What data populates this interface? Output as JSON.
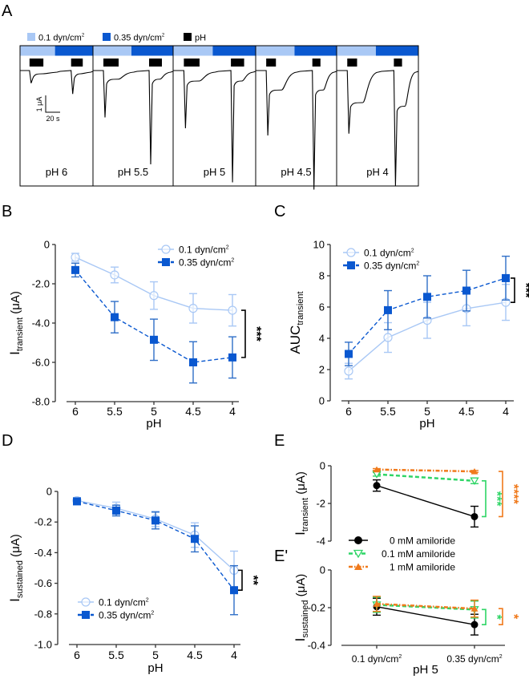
{
  "colors": {
    "light_blue": "#a9c8f5",
    "dark_blue": "#0a58d0",
    "light_blue_line": "#a9c8f5",
    "black": "#000000",
    "green": "#2fd566",
    "orange": "#f07a1c"
  },
  "panelA": {
    "label": "A",
    "legend": [
      {
        "name": "0.1 dyn/cm²",
        "text": "0.1 dyn/cm",
        "sup": "2",
        "color": "#a9c8f5"
      },
      {
        "name": "0.35 dyn/cm²",
        "text": "0.35 dyn/cm",
        "sup": "2",
        "color": "#0a58d0"
      },
      {
        "name": "pH",
        "text": "pH",
        "sup": "",
        "color": "#000000"
      }
    ],
    "scale_bar": {
      "current": "1 μA",
      "time": "20 s"
    },
    "traces": [
      {
        "label": "pH 6",
        "peak1": 0.35,
        "peak2": 0.65,
        "plateau1": 0.0,
        "plateau2": 0.0,
        "pulse1": "long",
        "pulse2": "long"
      },
      {
        "label": "pH 5.5",
        "peak1": 1.3,
        "peak2": 2.6,
        "plateau1": 0.15,
        "plateau2": 0.15,
        "pulse1": "long",
        "pulse2": "long"
      },
      {
        "label": "pH 5",
        "peak1": 1.6,
        "peak2": 3.1,
        "plateau1": 0.2,
        "plateau2": 0.2,
        "pulse1": "long",
        "pulse2": "long"
      },
      {
        "label": "pH 4.5",
        "peak1": 1.8,
        "peak2": 3.3,
        "plateau1": 0.45,
        "plateau2": 0.45,
        "pulse1": "short",
        "pulse2": "short"
      },
      {
        "label": "pH 4",
        "peak1": 1.75,
        "peak2": 3.2,
        "plateau1": 0.8,
        "plateau2": 0.9,
        "pulse1": "short",
        "pulse2": "short"
      }
    ]
  },
  "chart_data": [
    {
      "id": "B",
      "label": "B",
      "type": "line",
      "title": "",
      "xlabel": "pH",
      "ylabel": "I",
      "ylabel_sub": "transient",
      "ylabel_unit": "(μA)",
      "categories": [
        "6",
        "5.5",
        "5",
        "4.5",
        "4"
      ],
      "ylim": [
        -8,
        0
      ],
      "yticks": [
        0,
        -2,
        -4,
        -6,
        -8
      ],
      "ytick_labels": [
        "0",
        "-2.0",
        "-4.0",
        "-6.0",
        "-8.0"
      ],
      "legend_position": "top-right",
      "series": [
        {
          "name": "0.1 dyn/cm²",
          "marker": "open-circle",
          "line": "solid",
          "color": "#a9c8f5",
          "values": [
            -0.65,
            -1.55,
            -2.6,
            -3.25,
            -3.35
          ],
          "err": [
            0.2,
            0.4,
            0.7,
            0.75,
            0.8
          ]
        },
        {
          "name": "0.35 dyn/cm²",
          "marker": "filled-square",
          "line": "dashed",
          "color": "#0a58d0",
          "values": [
            -1.3,
            -3.7,
            -4.85,
            -6.0,
            -5.75
          ],
          "err": [
            0.35,
            0.8,
            1.05,
            1.05,
            1.05
          ]
        }
      ],
      "significance": [
        {
          "text": "***",
          "color": "#000000",
          "from": -3.35,
          "to": -5.75
        }
      ]
    },
    {
      "id": "C",
      "label": "C",
      "type": "line",
      "title": "",
      "xlabel": "pH",
      "ylabel": "AUC",
      "ylabel_sub": "transient",
      "ylabel_unit": "",
      "categories": [
        "6",
        "5.5",
        "5",
        "4.5",
        "4"
      ],
      "ylim": [
        0,
        10
      ],
      "yticks": [
        0,
        2,
        4,
        6,
        8,
        10
      ],
      "ytick_labels": [
        "0",
        "2",
        "4",
        "6",
        "8",
        "10"
      ],
      "legend_position": "top-left",
      "series": [
        {
          "name": "0.1 dyn/cm²",
          "marker": "open-circle",
          "line": "solid",
          "color": "#a9c8f5",
          "values": [
            1.9,
            4.05,
            5.15,
            5.9,
            6.3
          ],
          "err": [
            0.5,
            0.95,
            1.15,
            1.1,
            1.15
          ]
        },
        {
          "name": "0.35 dyn/cm²",
          "marker": "filled-square",
          "line": "dashed",
          "color": "#0a58d0",
          "values": [
            3.0,
            5.8,
            6.65,
            7.05,
            7.85
          ],
          "err": [
            0.75,
            1.25,
            1.35,
            1.3,
            1.4
          ]
        }
      ],
      "significance": [
        {
          "text": "***",
          "color": "#000000",
          "from": 7.85,
          "to": 6.3
        }
      ]
    },
    {
      "id": "D",
      "label": "D",
      "type": "line",
      "title": "",
      "xlabel": "pH",
      "ylabel": "I",
      "ylabel_sub": "sustained",
      "ylabel_unit": "(μA)",
      "categories": [
        "6",
        "5.5",
        "5",
        "4.5",
        "4"
      ],
      "ylim": [
        -1,
        0
      ],
      "yticks": [
        0,
        -0.2,
        -0.4,
        -0.6,
        -0.8,
        -1.0
      ],
      "ytick_labels": [
        "0",
        "-0.2",
        "-0.4",
        "-0.6",
        "-0.8",
        "-1.0"
      ],
      "legend_position": "bottom-left",
      "series": [
        {
          "name": "0.1 dyn/cm²",
          "marker": "open-circle",
          "line": "solid",
          "color": "#a9c8f5",
          "values": [
            -0.06,
            -0.11,
            -0.18,
            -0.285,
            -0.515
          ],
          "err": [
            0.02,
            0.04,
            0.05,
            0.08,
            0.125
          ]
        },
        {
          "name": "0.35 dyn/cm²",
          "marker": "filled-square",
          "line": "dashed",
          "color": "#0a58d0",
          "values": [
            -0.065,
            -0.125,
            -0.19,
            -0.31,
            -0.645
          ],
          "err": [
            0.02,
            0.035,
            0.055,
            0.085,
            0.16
          ]
        }
      ],
      "significance": [
        {
          "text": "**",
          "color": "#000000",
          "from": -0.515,
          "to": -0.645
        }
      ]
    },
    {
      "id": "E",
      "label": "E",
      "type": "line",
      "title": "",
      "xlabel": "",
      "ylabel": "I",
      "ylabel_sub": "transient",
      "ylabel_unit": "(μA)",
      "categories": [
        "0.1 dyn/cm²",
        "0.35 dyn/cm²"
      ],
      "ylim": [
        -4,
        0
      ],
      "yticks": [
        0,
        -2,
        -4
      ],
      "ytick_labels": [
        "0",
        "-2",
        "-4"
      ],
      "series": [
        {
          "name": "0 mM amiloride",
          "marker": "filled-circle",
          "line": "solid",
          "color": "#000000",
          "values": [
            -1.05,
            -2.7
          ],
          "err": [
            0.3,
            0.55
          ]
        },
        {
          "name": "0.1 mM amiloride",
          "marker": "open-triangle-down",
          "line": "dashed",
          "color": "#2fd566",
          "values": [
            -0.45,
            -0.8
          ],
          "err": [
            0.1,
            0.15
          ]
        },
        {
          "name": "1 mM amiloride",
          "marker": "filled-triangle-up",
          "line": "dash-dot",
          "color": "#f07a1c",
          "values": [
            -0.2,
            -0.3
          ],
          "err": [
            0.05,
            0.05
          ]
        }
      ],
      "significance": [
        {
          "text": "***",
          "color": "#2fd566",
          "from": -0.8,
          "to": -2.7
        },
        {
          "text": "****",
          "color": "#f07a1c",
          "from": -0.3,
          "to": -2.7
        }
      ]
    },
    {
      "id": "E'",
      "label": "E'",
      "type": "line",
      "title": "",
      "xlabel": "pH 5",
      "ylabel": "I",
      "ylabel_sub": "sustained",
      "ylabel_unit": "(μA)",
      "categories": [
        "0.1 dyn/cm²",
        "0.35 dyn/cm²"
      ],
      "ylim": [
        -0.4,
        0
      ],
      "yticks": [
        0,
        -0.2,
        -0.4
      ],
      "ytick_labels": [
        "0",
        "-0.2",
        "-0.4"
      ],
      "legend_position": "top-left",
      "series": [
        {
          "name": "0 mM amiloride",
          "marker": "filled-circle",
          "line": "solid",
          "color": "#000000",
          "values": [
            -0.195,
            -0.29
          ],
          "err": [
            0.045,
            0.055
          ]
        },
        {
          "name": "0.1 mM amiloride",
          "marker": "open-triangle-down",
          "line": "dashed",
          "color": "#2fd566",
          "values": [
            -0.185,
            -0.21
          ],
          "err": [
            0.04,
            0.045
          ]
        },
        {
          "name": "1 mM amiloride",
          "marker": "filled-triangle-up",
          "line": "dash-dot",
          "color": "#f07a1c",
          "values": [
            -0.18,
            -0.205
          ],
          "err": [
            0.04,
            0.045
          ]
        }
      ],
      "significance": [
        {
          "text": "*",
          "color": "#2fd566",
          "from": -0.21,
          "to": -0.29
        },
        {
          "text": "*",
          "color": "#f07a1c",
          "from": -0.205,
          "to": -0.29
        }
      ]
    }
  ]
}
